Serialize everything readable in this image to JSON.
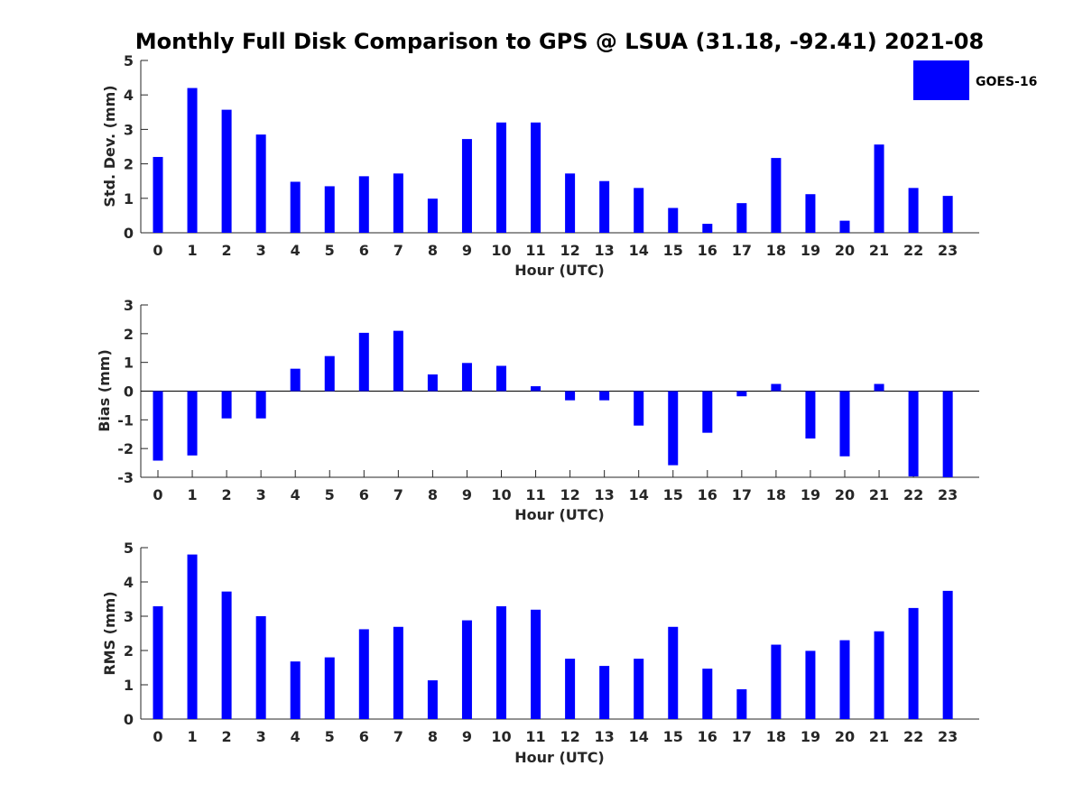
{
  "chart_data": {
    "title": "Monthly Full Disk Comparison to GPS @ LSUA (31.18, -92.41) 2021-08",
    "colors": {
      "bar": "#0000ff",
      "axis": "#262626"
    },
    "legend": {
      "label": "GOES-16",
      "placement": "top-right"
    },
    "panels": [
      {
        "type": "bar",
        "xlabel": "Hour (UTC)",
        "ylabel": "Std. Dev. (mm)",
        "categories": [
          "0",
          "1",
          "2",
          "3",
          "4",
          "5",
          "6",
          "7",
          "8",
          "9",
          "10",
          "11",
          "12",
          "13",
          "14",
          "15",
          "16",
          "17",
          "18",
          "19",
          "20",
          "21",
          "22",
          "23"
        ],
        "yticks": [
          "0",
          "1",
          "2",
          "3",
          "4",
          "5"
        ],
        "ylim": [
          0,
          5
        ],
        "series": [
          {
            "name": "GOES-16",
            "values": [
              2.2,
              4.2,
              3.57,
              2.85,
              1.48,
              1.35,
              1.64,
              1.72,
              0.99,
              2.72,
              3.2,
              3.2,
              1.72,
              1.5,
              1.3,
              0.72,
              0.26,
              0.86,
              2.17,
              1.12,
              0.35,
              2.56,
              1.3,
              1.07
            ]
          }
        ]
      },
      {
        "type": "bar",
        "xlabel": "Hour (UTC)",
        "ylabel": "Bias (mm)",
        "categories": [
          "0",
          "1",
          "2",
          "3",
          "4",
          "5",
          "6",
          "7",
          "8",
          "9",
          "10",
          "11",
          "12",
          "13",
          "14",
          "15",
          "16",
          "17",
          "18",
          "19",
          "20",
          "21",
          "22",
          "23"
        ],
        "yticks": [
          "-3",
          "-2",
          "-1",
          "0",
          "1",
          "2",
          "3"
        ],
        "ylim": [
          -3,
          3
        ],
        "series": [
          {
            "name": "GOES-16",
            "values": [
              -2.42,
              -2.24,
              -0.95,
              -0.95,
              0.78,
              1.22,
              2.03,
              2.1,
              0.58,
              0.98,
              0.88,
              0.17,
              -0.32,
              -0.32,
              -1.2,
              -2.58,
              -1.45,
              -0.18,
              0.25,
              -1.65,
              -2.27,
              0.25,
              -2.97,
              -3.0
            ]
          }
        ]
      },
      {
        "type": "bar",
        "xlabel": "Hour (UTC)",
        "ylabel": "RMS (mm)",
        "categories": [
          "0",
          "1",
          "2",
          "3",
          "4",
          "5",
          "6",
          "7",
          "8",
          "9",
          "10",
          "11",
          "12",
          "13",
          "14",
          "15",
          "16",
          "17",
          "18",
          "19",
          "20",
          "21",
          "22",
          "23"
        ],
        "yticks": [
          "0",
          "1",
          "2",
          "3",
          "4",
          "5"
        ],
        "ylim": [
          0,
          5
        ],
        "series": [
          {
            "name": "GOES-16",
            "values": [
              3.29,
              4.8,
              3.72,
              3.0,
              1.68,
              1.8,
              2.62,
              2.69,
              1.13,
              2.88,
              3.29,
              3.19,
              1.76,
              1.55,
              1.76,
              2.69,
              1.47,
              0.87,
              2.17,
              1.99,
              2.3,
              2.56,
              3.24,
              3.74
            ]
          }
        ]
      }
    ]
  }
}
